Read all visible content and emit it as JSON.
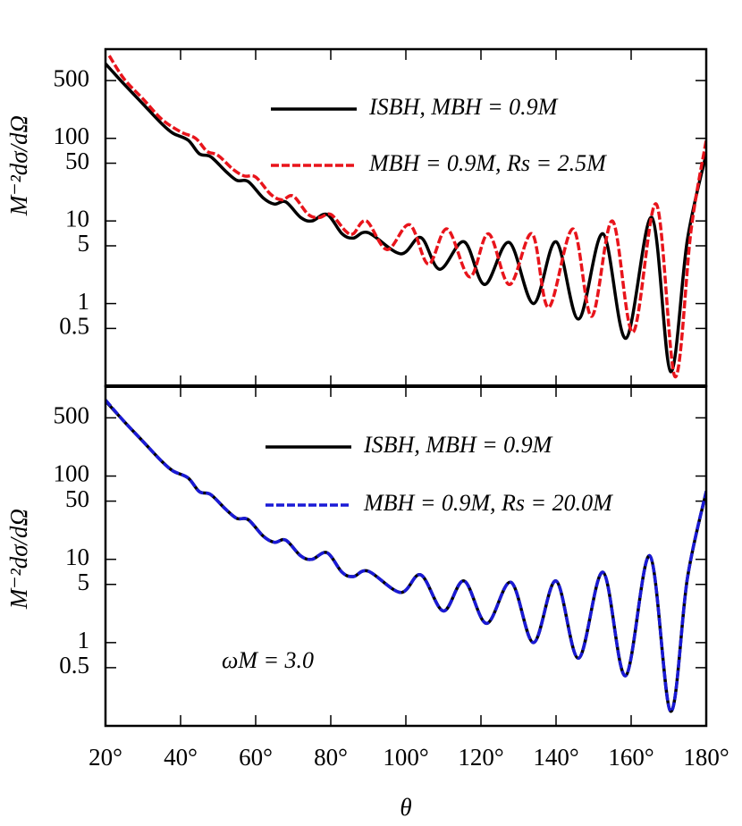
{
  "chart_data": [
    {
      "type": "line",
      "ylabel": "M⁻²dσ/dΩ",
      "log": true,
      "xlim": [
        20,
        180
      ],
      "xticks": [
        20,
        40,
        60,
        80,
        100,
        120,
        140,
        160,
        180
      ],
      "ylim": [
        0.1,
        1200
      ],
      "yticks": [
        500,
        100,
        50,
        10,
        5,
        1,
        0.5
      ],
      "series": [
        {
          "name": "ISBH, MBH = 0.9M",
          "color": "#000000",
          "dash": false,
          "x": [
            20,
            25,
            30,
            35,
            38,
            42,
            45,
            48,
            52,
            55,
            58,
            62,
            65,
            68,
            72,
            75,
            79,
            83,
            86,
            90,
            98.6,
            104,
            109,
            115.5,
            121,
            127.5,
            134,
            140,
            146,
            152.5,
            158.6,
            165.5,
            170.5,
            175,
            180
          ],
          "values": [
            800,
            450,
            260,
            150,
            115,
            95,
            65,
            60,
            40,
            31,
            30,
            19,
            16,
            17,
            11,
            10,
            12,
            7,
            6.2,
            7.2,
            4,
            6.3,
            2.6,
            5.6,
            1.7,
            5.5,
            1.0,
            5.6,
            0.65,
            7,
            0.38,
            11,
            0.15,
            6,
            65
          ]
        },
        {
          "name": "MBH = 0.9M, Rs = 2.5M",
          "color": "#e8141b",
          "dash": true,
          "x": [
            21,
            25,
            30,
            35,
            40,
            44,
            47,
            50,
            54,
            57,
            60,
            64,
            67,
            70,
            74,
            77,
            80,
            84,
            86,
            89.5,
            95,
            101,
            106,
            111,
            117,
            122,
            127.6,
            133.6,
            138,
            144.5,
            149.5,
            155,
            160.5,
            166.7,
            171.7,
            176,
            180
          ],
          "values": [
            1000,
            520,
            300,
            170,
            120,
            100,
            70,
            62,
            42,
            35,
            34,
            21,
            18,
            20,
            12,
            11,
            12,
            7.5,
            7,
            10,
            4.5,
            9,
            3,
            8,
            2.1,
            7,
            1.7,
            7,
            0.9,
            8,
            0.7,
            10,
            0.45,
            16,
            0.13,
            8,
            95
          ]
        }
      ]
    },
    {
      "type": "line",
      "ylabel": "M⁻²dσ/dΩ",
      "xlabel": "θ",
      "log": true,
      "annotation": "ωM = 3.0",
      "xlim": [
        20,
        180
      ],
      "xticks": [
        {
          "value": 20,
          "label": "20°"
        },
        {
          "value": 40,
          "label": "40°"
        },
        {
          "value": 60,
          "label": "60°"
        },
        {
          "value": 80,
          "label": "80°"
        },
        {
          "value": 100,
          "label": "100°"
        },
        {
          "value": 120,
          "label": "120°"
        },
        {
          "value": 140,
          "label": "140°"
        },
        {
          "value": 160,
          "label": "160°"
        },
        {
          "value": 180,
          "label": "180°"
        }
      ],
      "ylim": [
        0.1,
        1200
      ],
      "yticks": [
        500,
        100,
        50,
        10,
        5,
        1,
        0.5
      ],
      "series": [
        {
          "name": "ISBH, MBH = 0.9M",
          "color": "#000000",
          "dash": false,
          "x": [
            20,
            25,
            30,
            35,
            38,
            42,
            45,
            48,
            52,
            55,
            58,
            62,
            65,
            68,
            72,
            75,
            79,
            83,
            86,
            90,
            98.6,
            104,
            110,
            115.5,
            121.5,
            128,
            134,
            140,
            146,
            152.5,
            158.5,
            165,
            170.5,
            175,
            180
          ],
          "values": [
            800,
            450,
            260,
            150,
            115,
            95,
            65,
            60,
            40,
            31,
            30,
            19,
            16,
            17,
            11,
            10,
            12,
            7,
            6.2,
            7.2,
            4,
            6.5,
            2.4,
            5.5,
            1.7,
            5.3,
            1.0,
            5.5,
            0.65,
            7,
            0.4,
            11,
            0.15,
            6,
            65
          ]
        },
        {
          "name": "MBH = 0.9M, Rs = 20.0M",
          "color": "#1a1ad6",
          "dash": true,
          "x": [
            20,
            25,
            30,
            35,
            38,
            42,
            45,
            48,
            52,
            55,
            58,
            62,
            65,
            68,
            72,
            75,
            79,
            83,
            86,
            90,
            98.6,
            104,
            110,
            115.5,
            121.5,
            128,
            134,
            140,
            146,
            152.5,
            158.5,
            165,
            170.5,
            175,
            180
          ],
          "values": [
            820,
            450,
            260,
            150,
            115,
            95,
            65,
            60,
            40,
            31,
            30,
            19,
            16,
            17,
            11,
            10,
            12,
            7,
            6.2,
            7.2,
            4,
            6.5,
            2.4,
            5.5,
            1.7,
            5.3,
            1.0,
            5.5,
            0.65,
            7,
            0.4,
            11,
            0.15,
            6,
            66
          ]
        }
      ]
    }
  ]
}
